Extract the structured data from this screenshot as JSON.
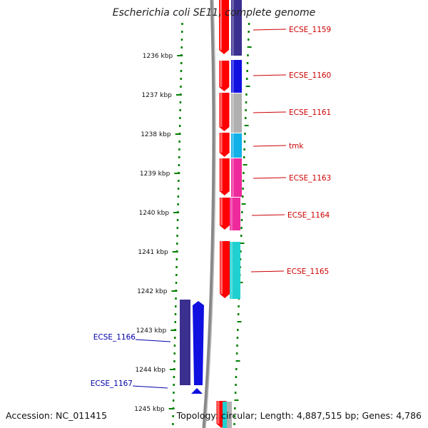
{
  "title": "Escherichia coli SE11, complete genome",
  "footer": {
    "accession": "Accession: NC_011415",
    "summary": "Topology: circular; Length: 4,887,515 bp; Genes: 4,786"
  },
  "ruler_labels": [
    "1236 kbp",
    "1237 kbp",
    "1238 kbp",
    "1239 kbp",
    "1240 kbp",
    "1241 kbp",
    "1242 kbp",
    "1243 kbp",
    "1244 kbp",
    "1245 kbp"
  ],
  "colors": {
    "forward_cds": "#ff0000",
    "label_forward": "#cc0000",
    "label_reverse": "#0000aa",
    "tick_green": "#008000",
    "backbone": "#888888"
  },
  "forward_genes": [
    {
      "name": "ECSE_1159",
      "color": "#3b2f8f"
    },
    {
      "name": "ECSE_1160",
      "color": "#1010e0"
    },
    {
      "name": "ECSE_1161",
      "color": "#b0b0b0"
    },
    {
      "name": "tmk",
      "color": "#10b0e8"
    },
    {
      "name": "ECSE_1163",
      "color": "#ee2a9c"
    },
    {
      "name": "ECSE_1164",
      "color": "#ee2a9c"
    },
    {
      "name": "ECSE_1165",
      "color": "#20d0d0"
    }
  ],
  "reverse_genes": [
    {
      "name": "ECSE_1166",
      "color": "#3b2f8f"
    },
    {
      "name": "ECSE_1167",
      "color": "#1010e0"
    }
  ]
}
